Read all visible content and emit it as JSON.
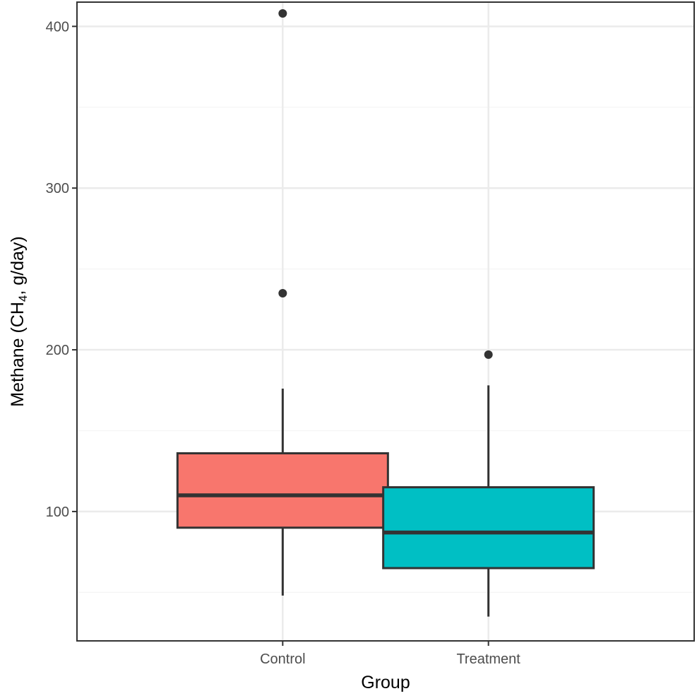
{
  "chart_data": {
    "type": "boxplot",
    "title": "",
    "xlabel": "Group",
    "ylabel": {
      "prefix": "Methane (CH",
      "subscript": "4",
      "suffix": ", g/day)"
    },
    "ylim": [
      20,
      415
    ],
    "y_ticks": [
      100,
      200,
      300,
      400
    ],
    "y_minor_ticks": [
      50,
      150,
      250,
      350
    ],
    "grid": true,
    "legend": "none",
    "categories": [
      "Control",
      "Treatment"
    ],
    "boxes": [
      {
        "category": "Control",
        "whisker_low": 48,
        "q1": 90,
        "median": 110,
        "q3": 136,
        "whisker_high": 176,
        "outliers": [
          235,
          408
        ],
        "fill": "#F8766D"
      },
      {
        "category": "Treatment",
        "whisker_low": 35,
        "q1": 65,
        "median": 87,
        "q3": 115,
        "whisker_high": 178,
        "outliers": [
          197
        ],
        "fill": "#00BFC4"
      }
    ],
    "colors": {
      "panel_border": "#333333",
      "grid_major": "#ebebeb",
      "grid_minor": "#f5f5f5",
      "box_line": "#333333",
      "tick_text": "#4d4d4d"
    }
  }
}
